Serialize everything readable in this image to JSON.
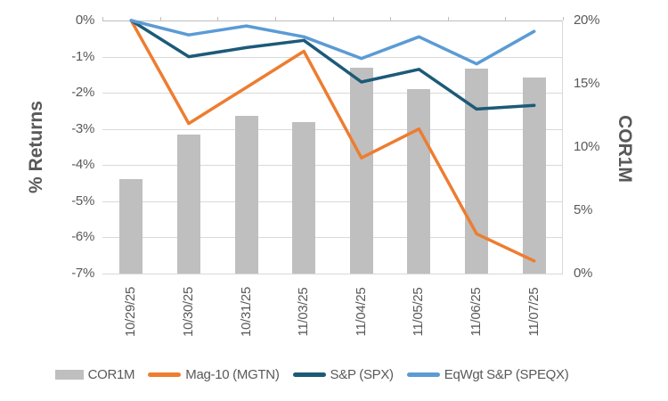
{
  "chart_data": {
    "type": "combo",
    "title": "",
    "categories": [
      "10/29/25",
      "10/30/25",
      "10/31/25",
      "11/03/25",
      "11/04/25",
      "11/05/25",
      "11/06/25",
      "11/07/25"
    ],
    "series": [
      {
        "name": "COR1M",
        "type": "bar",
        "axis": "right",
        "color": "#bfbfbf",
        "values": [
          7.5,
          11.0,
          12.5,
          12.0,
          16.3,
          14.6,
          16.2,
          15.5
        ]
      },
      {
        "name": "Mag-10 (MGTN)",
        "type": "line",
        "axis": "left",
        "color": "#ed7d31",
        "values": [
          0,
          -2.85,
          -1.85,
          -0.85,
          -3.8,
          -3.0,
          -5.9,
          -6.65
        ]
      },
      {
        "name": "S&P (SPX)",
        "type": "line",
        "axis": "left",
        "color": "#1c5a78",
        "values": [
          0,
          -1.0,
          -0.75,
          -0.55,
          -1.7,
          -1.35,
          -2.45,
          -2.35
        ]
      },
      {
        "name": "EqWgt S&P (SPEQX)",
        "type": "line",
        "axis": "left",
        "color": "#5b9bd5",
        "values": [
          0,
          -0.4,
          -0.15,
          -0.45,
          -1.05,
          -0.45,
          -1.2,
          -0.3
        ]
      }
    ],
    "left_axis": {
      "title": "% Returns",
      "min": -7,
      "max": 0,
      "ticks": [
        "0%",
        "-1%",
        "-2%",
        "-3%",
        "-4%",
        "-5%",
        "-6%",
        "-7%"
      ]
    },
    "right_axis": {
      "title": "COR1M",
      "min": 0,
      "max": 20,
      "ticks": [
        "20%",
        "15%",
        "10%",
        "5%",
        "0%"
      ]
    },
    "legend_position": "bottom",
    "grid": "horizontal",
    "colors": {
      "gridline": "#d9d9d9",
      "axis_line": "#bfbfbf",
      "text": "#595959"
    }
  }
}
